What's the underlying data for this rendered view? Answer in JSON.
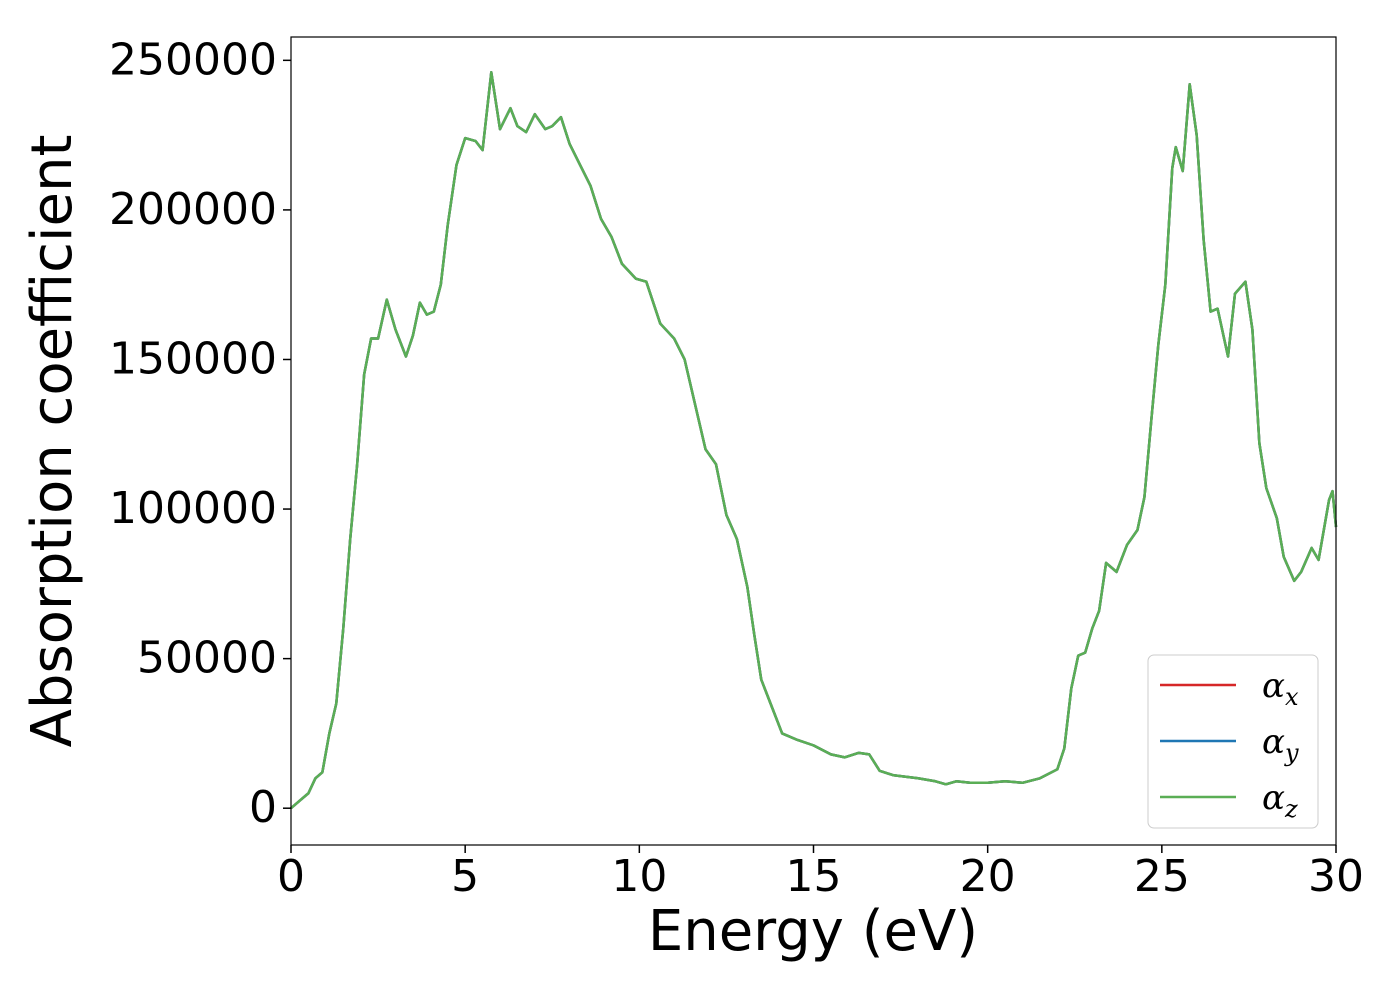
{
  "chart_data": {
    "type": "line",
    "x_label": "Energy (eV)",
    "y_label": "Absorption coefficient",
    "x": [
      0,
      0.3,
      0.5,
      0.7,
      0.9,
      1.1,
      1.3,
      1.5,
      1.7,
      1.9,
      2.1,
      2.3,
      2.5,
      2.75,
      3.0,
      3.3,
      3.5,
      3.7,
      3.9,
      4.1,
      4.3,
      4.5,
      4.75,
      5.0,
      5.3,
      5.5,
      5.75,
      6.0,
      6.3,
      6.5,
      6.75,
      7.0,
      7.3,
      7.5,
      7.75,
      8.0,
      8.3,
      8.6,
      8.9,
      9.2,
      9.5,
      9.9,
      10.2,
      10.6,
      11.0,
      11.3,
      11.6,
      11.9,
      12.2,
      12.5,
      12.8,
      13.1,
      13.3,
      13.5,
      13.8,
      14.1,
      14.5,
      15.0,
      15.5,
      15.9,
      16.3,
      16.6,
      16.9,
      17.3,
      18.0,
      18.5,
      18.8,
      19.1,
      19.5,
      20.0,
      20.5,
      21.0,
      21.5,
      22.0,
      22.2,
      22.4,
      22.6,
      22.8,
      23.0,
      23.2,
      23.4,
      23.7,
      24.0,
      24.3,
      24.5,
      24.7,
      24.9,
      25.1,
      25.3,
      25.4,
      25.6,
      25.8,
      26.0,
      26.2,
      26.4,
      26.6,
      26.9,
      27.1,
      27.4,
      27.6,
      27.8,
      28.0,
      28.3,
      28.5,
      28.8,
      29.0,
      29.3,
      29.5,
      29.8,
      29.9,
      30.0
    ],
    "series": [
      {
        "name": "αx",
        "color": "#d62728",
        "values": [
          0,
          3000,
          5000,
          10000,
          12000,
          25000,
          35000,
          60000,
          90000,
          115000,
          145000,
          157000,
          157000,
          170000,
          160000,
          151000,
          158000,
          169000,
          165000,
          166000,
          175000,
          195000,
          215000,
          224000,
          223000,
          220000,
          246000,
          227000,
          234000,
          228000,
          226000,
          232000,
          227000,
          228000,
          231000,
          222000,
          215000,
          208000,
          197000,
          191000,
          182000,
          177000,
          176000,
          162000,
          157000,
          150000,
          135000,
          120000,
          115000,
          98000,
          90000,
          74000,
          58000,
          43000,
          34000,
          25000,
          23000,
          21000,
          18000,
          17000,
          18500,
          18000,
          12500,
          11000,
          10000,
          9000,
          8000,
          9000,
          8500,
          8500,
          9000,
          8500,
          10000,
          13000,
          20000,
          40000,
          51000,
          52000,
          60000,
          66000,
          82000,
          79000,
          88000,
          93000,
          104000,
          130000,
          155000,
          175000,
          214000,
          221000,
          213000,
          242000,
          225000,
          190000,
          166000,
          167000,
          151000,
          172000,
          176000,
          160000,
          122000,
          107000,
          97000,
          84000,
          76000,
          79000,
          87000,
          83000,
          103000,
          106000,
          94000
        ]
      },
      {
        "name": "αy",
        "color": "#1f77b4",
        "values": [
          0,
          3000,
          5000,
          10000,
          12000,
          25000,
          35000,
          60000,
          90000,
          115000,
          145000,
          157000,
          157000,
          170000,
          160000,
          151000,
          158000,
          169000,
          165000,
          166000,
          175000,
          195000,
          215000,
          224000,
          223000,
          220000,
          246000,
          227000,
          234000,
          228000,
          226000,
          232000,
          227000,
          228000,
          231000,
          222000,
          215000,
          208000,
          197000,
          191000,
          182000,
          177000,
          176000,
          162000,
          157000,
          150000,
          135000,
          120000,
          115000,
          98000,
          90000,
          74000,
          58000,
          43000,
          34000,
          25000,
          23000,
          21000,
          18000,
          17000,
          18500,
          18000,
          12500,
          11000,
          10000,
          9000,
          8000,
          9000,
          8500,
          8500,
          9000,
          8500,
          10000,
          13000,
          20000,
          40000,
          51000,
          52000,
          60000,
          66000,
          82000,
          79000,
          88000,
          93000,
          104000,
          130000,
          155000,
          175000,
          214000,
          221000,
          213000,
          242000,
          225000,
          190000,
          166000,
          167000,
          151000,
          172000,
          176000,
          160000,
          122000,
          107000,
          97000,
          84000,
          76000,
          79000,
          87000,
          83000,
          103000,
          106000,
          94000
        ]
      },
      {
        "name": "αz",
        "color": "#5aae55",
        "values": [
          0,
          3000,
          5000,
          10000,
          12000,
          25000,
          35000,
          60000,
          90000,
          115000,
          145000,
          157000,
          157000,
          170000,
          160000,
          151000,
          158000,
          169000,
          165000,
          166000,
          175000,
          195000,
          215000,
          224000,
          223000,
          220000,
          246000,
          227000,
          234000,
          228000,
          226000,
          232000,
          227000,
          228000,
          231000,
          222000,
          215000,
          208000,
          197000,
          191000,
          182000,
          177000,
          176000,
          162000,
          157000,
          150000,
          135000,
          120000,
          115000,
          98000,
          90000,
          74000,
          58000,
          43000,
          34000,
          25000,
          23000,
          21000,
          18000,
          17000,
          18500,
          18000,
          12500,
          11000,
          10000,
          9000,
          8000,
          9000,
          8500,
          8500,
          9000,
          8500,
          10000,
          13000,
          20000,
          40000,
          51000,
          52000,
          60000,
          66000,
          82000,
          79000,
          88000,
          93000,
          104000,
          130000,
          155000,
          175000,
          214000,
          221000,
          213000,
          242000,
          225000,
          190000,
          166000,
          167000,
          151000,
          172000,
          176000,
          160000,
          122000,
          107000,
          97000,
          84000,
          76000,
          79000,
          87000,
          83000,
          103000,
          106000,
          94000
        ]
      }
    ],
    "xlim": [
      0,
      30
    ],
    "xticks": [
      0,
      5,
      10,
      15,
      20,
      25,
      30
    ],
    "ylim": [
      -12300,
      257800
    ],
    "yticks": [
      0,
      50000,
      100000,
      150000,
      200000,
      250000
    ],
    "grid": false,
    "legend": "lower right"
  }
}
